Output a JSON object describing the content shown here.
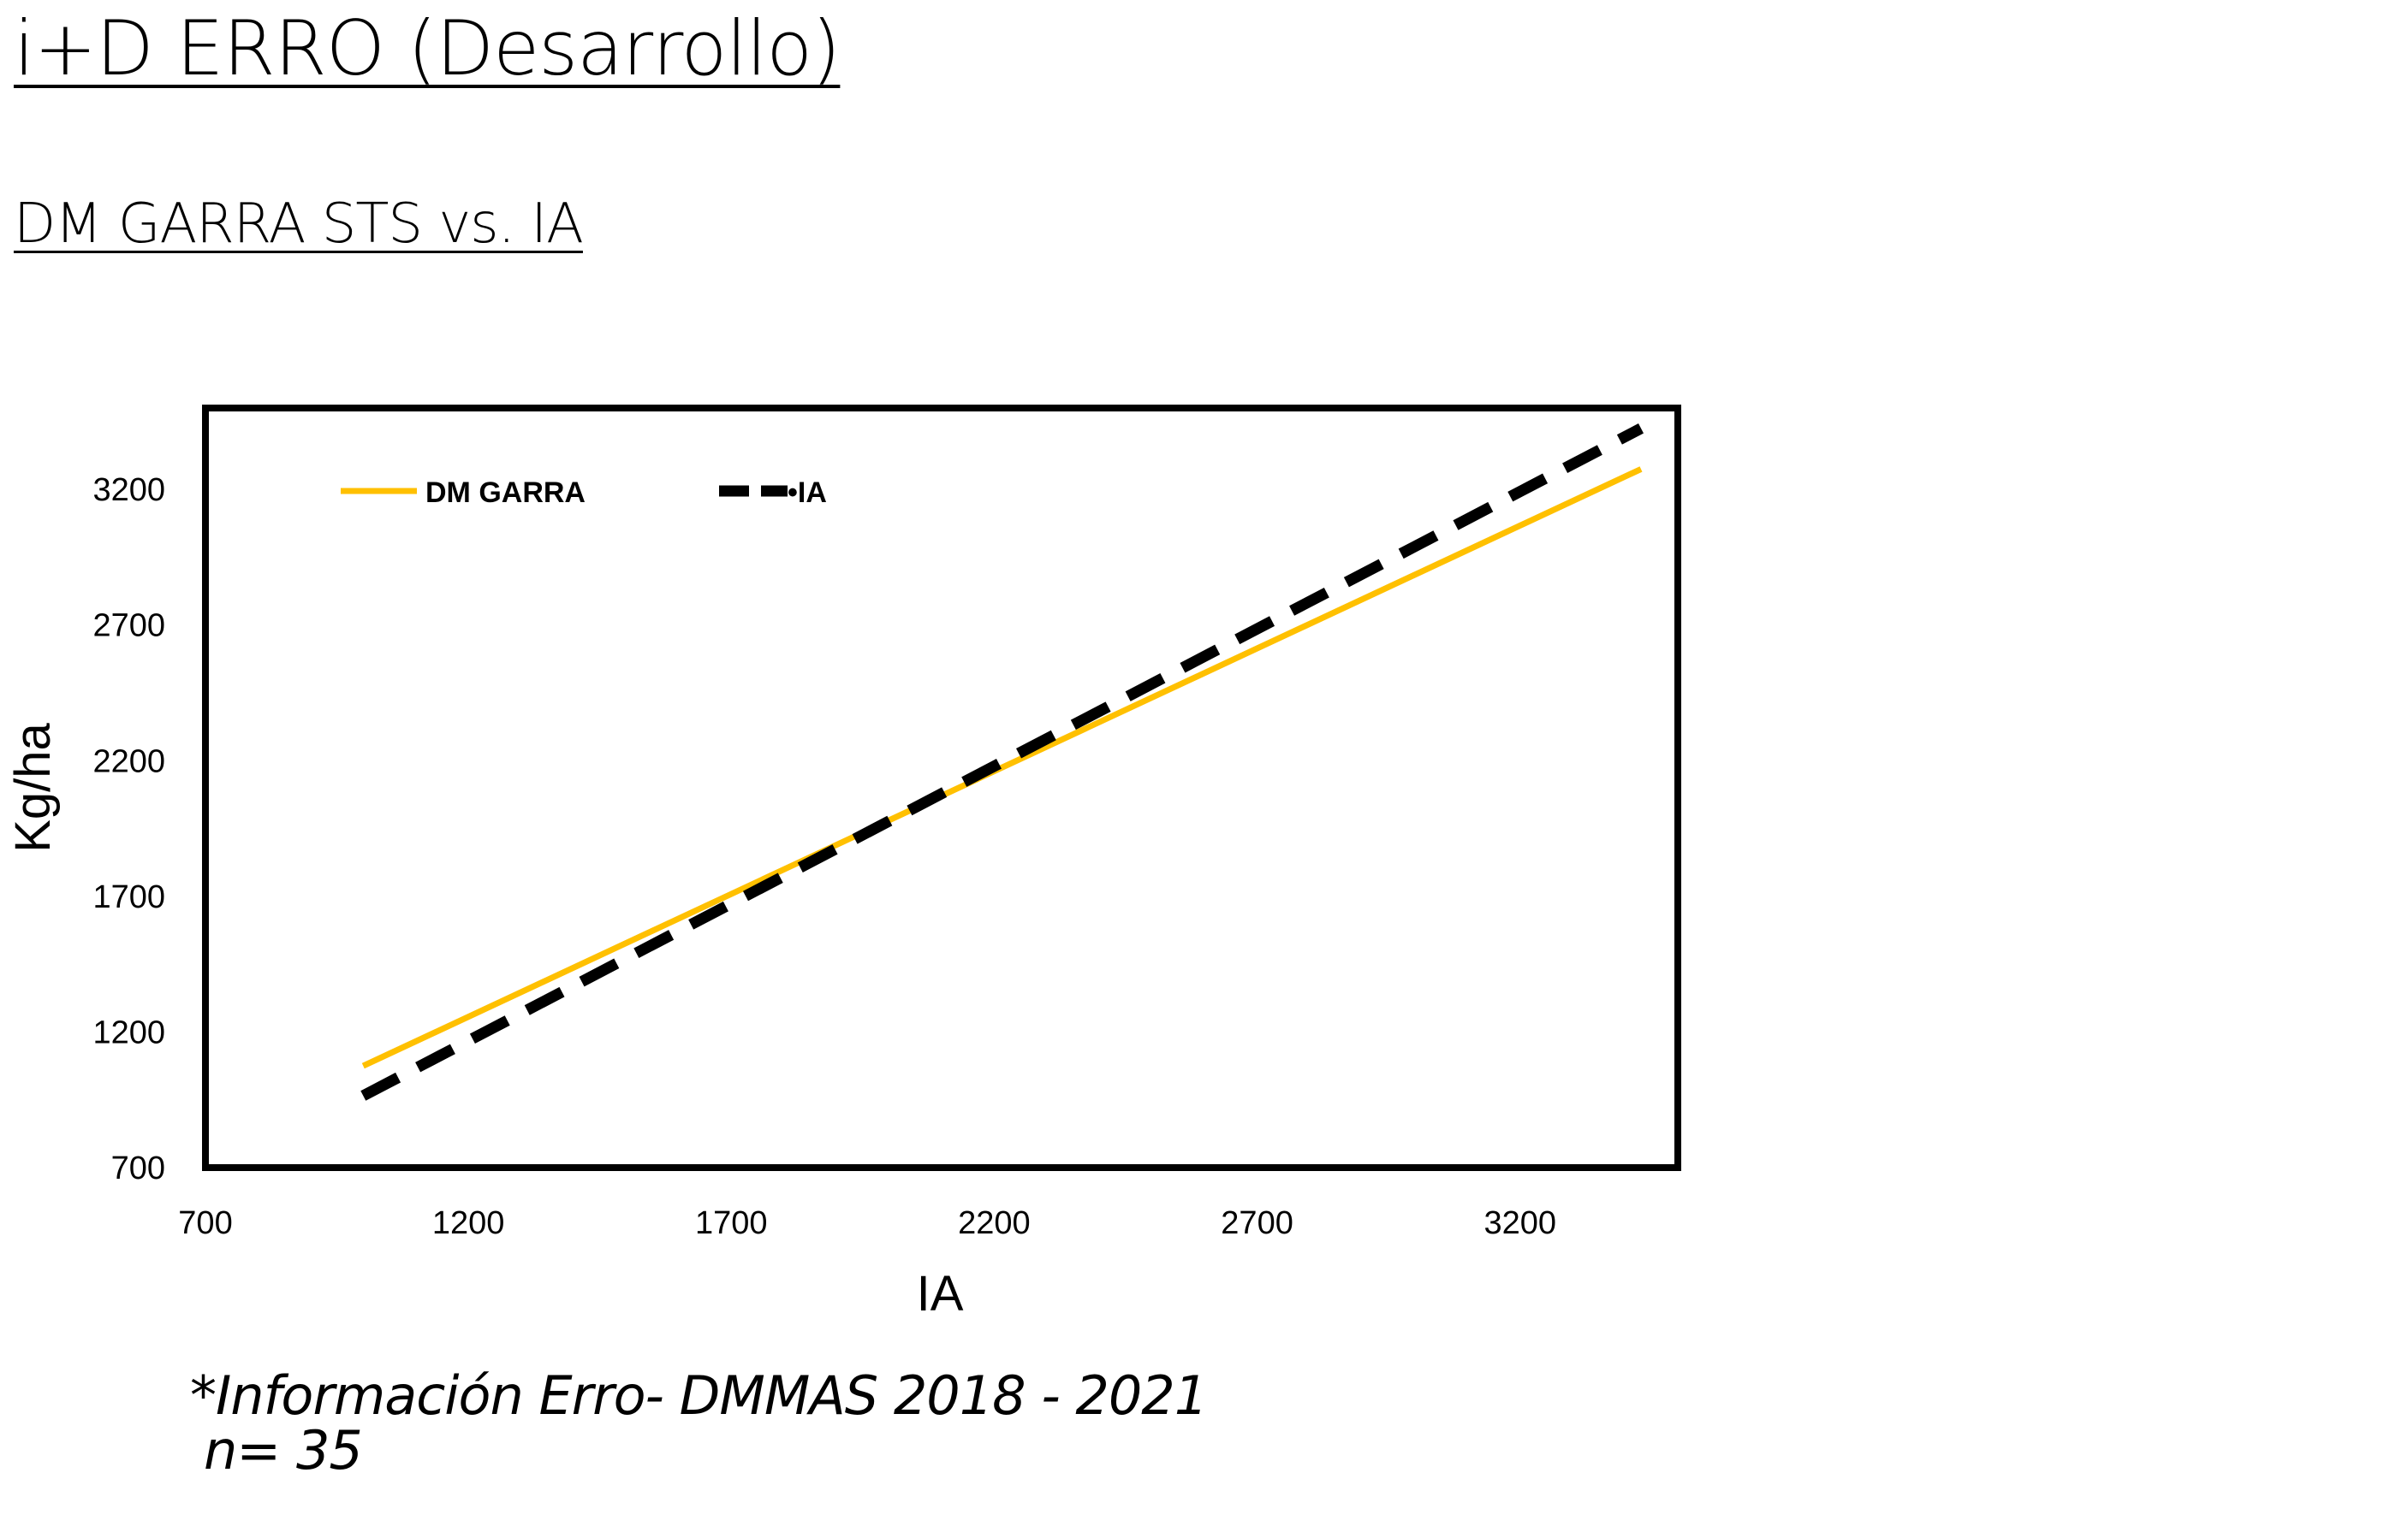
{
  "header": {
    "title": "i+D ERRO (Desarrollo)",
    "subtitle": "DM GARRA STS vs. IA"
  },
  "footnote": {
    "line1": "*Información Erro- DMMAS 2018 - 2021",
    "line2": "n= 35"
  },
  "colors": {
    "dm_garra": "#FFC000",
    "ia": "#000000"
  },
  "chart_data": {
    "type": "line",
    "title": "",
    "xlabel": "IA",
    "ylabel": "Kg/ha",
    "xlim": [
      700,
      3500
    ],
    "ylim": [
      700,
      3500
    ],
    "xticks": [
      "700",
      "1200",
      "1700",
      "2200",
      "2700",
      "3200"
    ],
    "yticks": [
      "700",
      "1200",
      "1700",
      "2200",
      "2700",
      "3200"
    ],
    "legend_position": "top-left",
    "grid": false,
    "series": [
      {
        "name": "DM GARRA",
        "style": "solid",
        "color": "#FFC000",
        "points": [
          [
            1000,
            1075
          ],
          [
            3430,
            3275
          ]
        ]
      },
      {
        "name": "IA",
        "legend_label": "•IA",
        "style": "dashed",
        "color": "#000000",
        "points": [
          [
            1000,
            965
          ],
          [
            3430,
            3425
          ]
        ]
      }
    ]
  }
}
